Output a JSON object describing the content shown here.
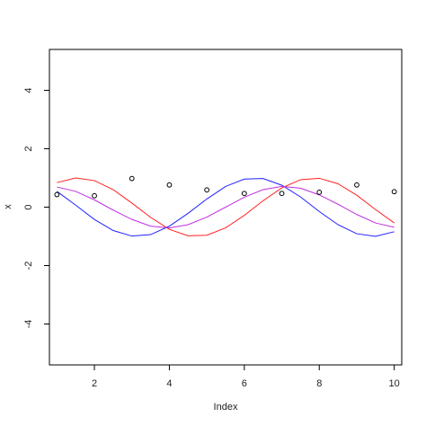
{
  "chart_data": {
    "type": "line",
    "xlabel": "Index",
    "ylabel": "x",
    "xlim": [
      0.8,
      10.2
    ],
    "ylim": [
      -5.4,
      5.4
    ],
    "x_ticks": [
      2,
      4,
      6,
      8,
      10
    ],
    "x_tick_labels": [
      "2",
      "4",
      "6",
      "8",
      "10"
    ],
    "y_ticks": [
      -4,
      -2,
      0,
      2,
      4
    ],
    "y_tick_labels": [
      "-4",
      "-2",
      "0",
      "2",
      "4"
    ],
    "points": {
      "x": [
        1,
        2,
        3,
        4,
        5,
        6,
        7,
        8,
        9,
        10
      ],
      "y": [
        0.43,
        0.39,
        0.98,
        0.76,
        0.59,
        0.47,
        0.47,
        0.51,
        0.76,
        0.53
      ]
    },
    "series": [
      {
        "color": "#ff2020",
        "x": [
          1,
          1.5,
          2,
          2.5,
          3,
          3.5,
          4,
          4.5,
          5,
          5.5,
          6,
          6.5,
          7,
          7.5,
          8,
          8.5,
          9,
          9.5,
          10
        ],
        "y": [
          0.84,
          1.0,
          0.91,
          0.6,
          0.14,
          -0.35,
          -0.76,
          -0.98,
          -0.96,
          -0.71,
          -0.28,
          0.22,
          0.66,
          0.94,
          0.99,
          0.8,
          0.41,
          -0.08,
          -0.54
        ]
      },
      {
        "color": "#2020ff",
        "x": [
          1,
          1.5,
          2,
          2.5,
          3,
          3.5,
          4,
          4.5,
          5,
          5.5,
          6,
          6.5,
          7,
          7.5,
          8,
          8.5,
          9,
          9.5,
          10
        ],
        "y": [
          0.54,
          0.07,
          -0.42,
          -0.8,
          -0.99,
          -0.94,
          -0.65,
          -0.21,
          0.28,
          0.71,
          0.96,
          0.98,
          0.75,
          0.35,
          -0.15,
          -0.6,
          -0.91,
          -1.0,
          -0.84
        ]
      },
      {
        "color": "#c030e0",
        "x": [
          1,
          1.5,
          2,
          2.5,
          3,
          3.5,
          4,
          4.5,
          5,
          5.5,
          6,
          6.5,
          7,
          7.5,
          8,
          8.5,
          9,
          9.5,
          10
        ],
        "y": [
          0.69,
          0.54,
          0.25,
          -0.1,
          -0.42,
          -0.65,
          -0.71,
          -0.6,
          -0.34,
          0.0,
          0.34,
          0.6,
          0.71,
          0.65,
          0.42,
          0.1,
          -0.25,
          -0.54,
          -0.69
        ]
      }
    ],
    "grid": false,
    "legend": "none"
  }
}
